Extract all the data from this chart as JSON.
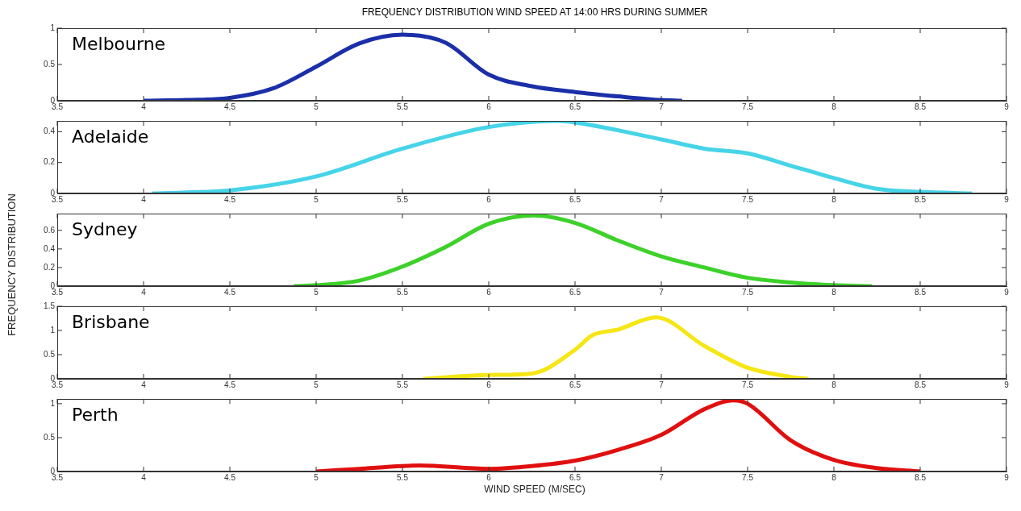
{
  "chart_data": [
    {
      "type": "line",
      "title": "FREQUENCY DISTRIBUTION WIND SPEED AT 14:00 HRS DURING SUMMER",
      "x": [
        4,
        4.25,
        4.5,
        4.75,
        5,
        5.25,
        5.5,
        5.75,
        6,
        6.25,
        6.5,
        6.75,
        7,
        7.12
      ],
      "series": [
        {
          "name": "Melbourne",
          "color": "#1a2fa8",
          "values": [
            0,
            0.01,
            0.04,
            0.17,
            0.47,
            0.79,
            0.91,
            0.8,
            0.36,
            0.2,
            0.12,
            0.06,
            0.01,
            0
          ]
        }
      ],
      "xlim": [
        3.5,
        9
      ],
      "xticks": [
        3.5,
        4,
        4.5,
        5,
        5.5,
        6,
        6.5,
        7,
        7.5,
        8,
        8.5,
        9
      ],
      "ylim": [
        0,
        1
      ],
      "yticks": [
        0,
        0.5,
        1
      ],
      "grid": false,
      "legend": false
    },
    {
      "type": "line",
      "x": [
        4.05,
        4.5,
        5,
        5.5,
        6,
        6.4,
        6.5,
        7,
        7.25,
        7.5,
        7.75,
        8,
        8.25,
        8.5,
        8.8
      ],
      "series": [
        {
          "name": "Adelaide",
          "color": "#46d4e8",
          "values": [
            0,
            0.02,
            0.11,
            0.29,
            0.43,
            0.47,
            0.46,
            0.35,
            0.29,
            0.26,
            0.18,
            0.1,
            0.03,
            0.01,
            0
          ]
        }
      ],
      "xlim": [
        3.5,
        9
      ],
      "xticks": [
        3.5,
        4,
        4.5,
        5,
        5.5,
        6,
        6.5,
        7,
        7.5,
        8,
        8.5,
        9
      ],
      "ylim": [
        0,
        0.47
      ],
      "yticks": [
        0,
        0.2,
        0.4
      ],
      "grid": false,
      "legend": false
    },
    {
      "type": "line",
      "ylabel": "FREQUENCY DISTRIBUTION",
      "x": [
        4.87,
        5,
        5.25,
        5.5,
        5.75,
        6,
        6.26,
        6.5,
        6.75,
        7,
        7.25,
        7.5,
        7.75,
        8,
        8.22
      ],
      "series": [
        {
          "name": "Sydney",
          "color": "#3dd12a",
          "values": [
            0,
            0.01,
            0.06,
            0.21,
            0.42,
            0.67,
            0.76,
            0.68,
            0.49,
            0.32,
            0.2,
            0.09,
            0.04,
            0.01,
            0
          ]
        }
      ],
      "xlim": [
        3.5,
        9
      ],
      "xticks": [
        3.5,
        4,
        4.5,
        5,
        5.5,
        6,
        6.5,
        7,
        7.5,
        8,
        8.5,
        9
      ],
      "ylim": [
        0,
        0.78
      ],
      "yticks": [
        0,
        0.2,
        0.4,
        0.6
      ],
      "grid": false,
      "legend": false
    },
    {
      "type": "line",
      "x": [
        5.62,
        6,
        6.25,
        6.5,
        6.6,
        6.75,
        6.97,
        7.25,
        7.5,
        7.75,
        7.85
      ],
      "series": [
        {
          "name": "Brisbane",
          "color": "#f5e614",
          "values": [
            0,
            0.08,
            0.11,
            0.6,
            0.9,
            1.02,
            1.27,
            0.68,
            0.23,
            0.04,
            0
          ]
        }
      ],
      "xlim": [
        3.5,
        9
      ],
      "xticks": [
        3.5,
        4,
        4.5,
        5,
        5.5,
        6,
        6.5,
        7,
        7.5,
        8,
        8.5,
        9
      ],
      "ylim": [
        0,
        1.5
      ],
      "yticks": [
        0,
        0.5,
        1,
        1.5
      ],
      "grid": false,
      "legend": false
    },
    {
      "type": "line",
      "xlabel": "WIND SPEED (M/SEC)",
      "x": [
        5,
        5.25,
        5.5,
        5.6,
        6,
        6.25,
        6.5,
        6.75,
        7,
        7.25,
        7.42,
        7.5,
        7.75,
        8,
        8.25,
        8.5
      ],
      "series": [
        {
          "name": "Perth",
          "color": "#e01010",
          "values": [
            0,
            0.04,
            0.08,
            0.09,
            0.04,
            0.08,
            0.16,
            0.32,
            0.54,
            0.92,
            1.05,
            1,
            0.46,
            0.17,
            0.05,
            0
          ]
        }
      ],
      "xlim": [
        3.5,
        9
      ],
      "xticks": [
        3.5,
        4,
        4.5,
        5,
        5.5,
        6,
        6.5,
        7,
        7.5,
        8,
        8.5,
        9
      ],
      "ylim": [
        0,
        1.07
      ],
      "yticks": [
        0,
        0.5,
        1
      ],
      "grid": false,
      "legend": false
    }
  ]
}
